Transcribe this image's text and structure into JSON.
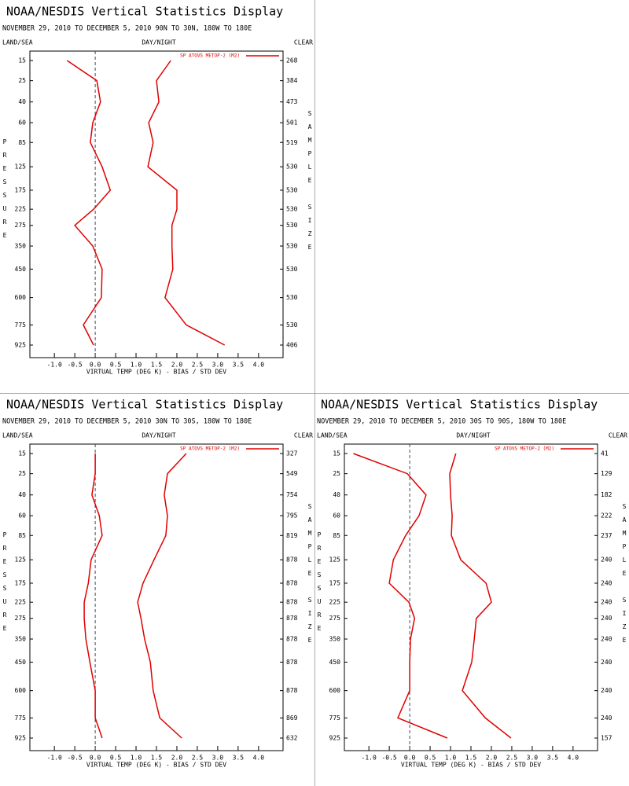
{
  "chart_data": [
    {
      "type": "line",
      "title": "NOAA/NESDIS Vertical Statistics Display",
      "subtitle": "NOVEMBER 29, 2010 TO DECEMBER 5, 2010 90N TO 30N, 180W TO 180E",
      "land_sea_label": "LAND/SEA",
      "day_night_label": "DAY/NIGHT",
      "clear_label": "CLEAR",
      "ylabel": "PRESSURE",
      "y2label": "SAMPLE SIZE",
      "xlabel": "VIRTUAL TEMP (DEG K) - BIAS / STD DEV",
      "xlim": [
        -1.6,
        4.6
      ],
      "xticks": [
        {
          "value": -1,
          "label": "-1.0"
        },
        -0.5,
        {
          "value": 0,
          "label": "0.0"
        },
        0.5,
        {
          "value": 1,
          "label": "1.0"
        },
        1.5,
        {
          "value": 2,
          "label": "2.0"
        },
        2.5,
        {
          "value": 3,
          "label": "3.0"
        },
        3.5,
        {
          "value": 4,
          "label": "4.0"
        }
      ],
      "levels": [
        15,
        25,
        40,
        60,
        85,
        125,
        175,
        225,
        275,
        350,
        450,
        600,
        775,
        925
      ],
      "sample_size": [
        268,
        384,
        473,
        501,
        519,
        530,
        530,
        530,
        530,
        530,
        530,
        530,
        530,
        406
      ],
      "zero_line": true,
      "series": [
        {
          "name": "SP ATOVS METOP-2 (M2)",
          "color": "#e00000",
          "values": [
            -0.69,
            0.04,
            0.13,
            -0.06,
            -0.12,
            0.17,
            0.37,
            -0.04,
            -0.5,
            -0.06,
            0.17,
            0.15,
            -0.29,
            -0.04
          ],
          "std_dev": [
            1.85,
            1.5,
            1.56,
            1.31,
            1.42,
            1.29,
            2.0,
            2.0,
            1.88,
            1.88,
            1.9,
            1.71,
            2.23,
            3.17
          ]
        }
      ]
    },
    {
      "type": "line",
      "title": "NOAA/NESDIS Vertical Statistics Display",
      "subtitle": "NOVEMBER 29, 2010 TO DECEMBER 5, 2010 30N TO 30S, 180W TO 180E",
      "land_sea_label": "LAND/SEA",
      "day_night_label": "DAY/NIGHT",
      "clear_label": "CLEAR",
      "ylabel": "PRESSURE",
      "y2label": "SAMPLE SIZE",
      "xlabel": "VIRTUAL TEMP (DEG K) - BIAS / STD DEV",
      "xlim": [
        -1.6,
        4.6
      ],
      "xticks": [
        {
          "value": -1,
          "label": "-1.0"
        },
        -0.5,
        {
          "value": 0,
          "label": "0.0"
        },
        0.5,
        {
          "value": 1,
          "label": "1.0"
        },
        1.5,
        {
          "value": 2,
          "label": "2.0"
        },
        2.5,
        {
          "value": 3,
          "label": "3.0"
        },
        3.5,
        {
          "value": 4,
          "label": "4.0"
        }
      ],
      "levels": [
        15,
        25,
        40,
        60,
        85,
        125,
        175,
        225,
        275,
        350,
        450,
        600,
        775,
        925
      ],
      "sample_size": [
        327,
        549,
        754,
        795,
        819,
        878,
        878,
        878,
        878,
        878,
        878,
        878,
        869,
        632
      ],
      "zero_line": true,
      "series": [
        {
          "name": "SP ATOVS METOP-2 (M2)",
          "color": "#e00000",
          "values": [
            0.0,
            0.0,
            -0.08,
            0.1,
            0.17,
            -0.1,
            -0.17,
            -0.27,
            -0.27,
            -0.23,
            -0.13,
            0.0,
            0.0,
            0.17
          ],
          "std_dev": [
            2.23,
            1.77,
            1.69,
            1.77,
            1.73,
            1.44,
            1.17,
            1.04,
            1.12,
            1.21,
            1.35,
            1.42,
            1.58,
            2.12
          ]
        }
      ]
    },
    {
      "type": "line",
      "title": "NOAA/NESDIS Vertical Statistics Display",
      "subtitle": "NOVEMBER 29, 2010 TO DECEMBER 5, 2010 30S TO 90S, 180W TO 180E",
      "land_sea_label": "LAND/SEA",
      "day_night_label": "DAY/NIGHT",
      "clear_label": "CLEAR",
      "ylabel": "PRESSURE",
      "y2label": "SAMPLE SIZE",
      "xlabel": "VIRTUAL TEMP (DEG K) - BIAS / STD DEV",
      "xlim": [
        -1.6,
        4.6
      ],
      "xticks": [
        {
          "value": -1,
          "label": "-1.0"
        },
        -0.5,
        {
          "value": 0,
          "label": "0.0"
        },
        0.5,
        {
          "value": 1,
          "label": "1.0"
        },
        1.5,
        {
          "value": 2,
          "label": "2.0"
        },
        2.5,
        {
          "value": 3,
          "label": "3.0"
        },
        3.5,
        {
          "value": 4,
          "label": "4.0"
        }
      ],
      "levels": [
        15,
        25,
        40,
        60,
        85,
        125,
        175,
        225,
        275,
        350,
        450,
        600,
        775,
        925
      ],
      "sample_size": [
        41,
        129,
        182,
        222,
        237,
        240,
        240,
        240,
        240,
        240,
        240,
        240,
        240,
        157
      ],
      "zero_line": true,
      "series": [
        {
          "name": "SP ATOVS METOP-2 (M2)",
          "color": "#e00000",
          "values": [
            -1.38,
            -0.06,
            0.4,
            0.23,
            -0.1,
            -0.4,
            -0.5,
            -0.02,
            0.12,
            0.02,
            0.0,
            0.0,
            -0.29,
            0.92
          ],
          "std_dev": [
            1.13,
            0.98,
            1.0,
            1.04,
            1.02,
            1.25,
            1.87,
            2.0,
            1.63,
            1.58,
            1.52,
            1.29,
            1.85,
            2.48
          ]
        }
      ]
    }
  ]
}
